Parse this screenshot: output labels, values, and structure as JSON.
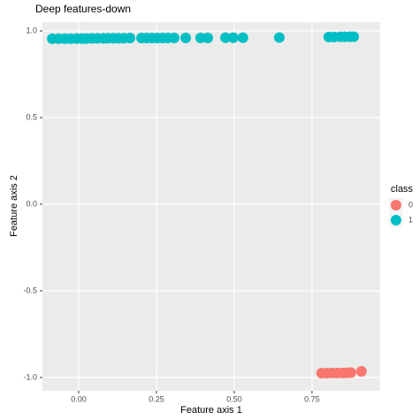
{
  "chart_data": {
    "type": "scatter",
    "title": "Deep features-down",
    "x_label": "Feature axis 1",
    "y_label": "Feature axis 2",
    "legend_title": "class",
    "legend": "right",
    "grid": true,
    "xlim": [
      -0.1165,
      0.969
    ],
    "ylim": [
      -1.077,
      1.051
    ],
    "xticks": [
      {
        "value": 0,
        "label": "0.00"
      },
      {
        "value": 0.25,
        "label": "0.25"
      },
      {
        "value": 0.5,
        "label": "0.50"
      },
      {
        "value": 0.75,
        "label": "0.75"
      }
    ],
    "yticks": [
      {
        "value": -1,
        "label": "-1.0"
      },
      {
        "value": -0.5,
        "label": "-0.5"
      },
      {
        "value": 0,
        "label": "0.0"
      },
      {
        "value": 0.5,
        "label": "0.5"
      },
      {
        "value": 1,
        "label": "1.0"
      }
    ],
    "series": [
      {
        "name": "0",
        "color": "#F8766D",
        "x": [
          0.781,
          0.798,
          0.815,
          0.83,
          0.847,
          0.861,
          0.875,
          0.909
        ],
        "values": [
          -0.975,
          -0.975,
          -0.974,
          -0.974,
          -0.974,
          -0.973,
          -0.972,
          -0.965
        ]
      },
      {
        "name": "1",
        "color": "#00BFC4",
        "x": [
          -0.085,
          -0.065,
          -0.045,
          -0.026,
          -0.006,
          0.011,
          0.026,
          0.043,
          0.06,
          0.08,
          0.094,
          0.111,
          0.128,
          0.145,
          0.165,
          0.202,
          0.219,
          0.236,
          0.253,
          0.27,
          0.287,
          0.307,
          0.344,
          0.392,
          0.415,
          0.472,
          0.497,
          0.528,
          0.645,
          0.804,
          0.821,
          0.841,
          0.855,
          0.872,
          0.884
        ],
        "values": [
          0.955,
          0.955,
          0.955,
          0.955,
          0.956,
          0.956,
          0.956,
          0.957,
          0.957,
          0.957,
          0.958,
          0.958,
          0.958,
          0.958,
          0.959,
          0.959,
          0.959,
          0.959,
          0.959,
          0.959,
          0.96,
          0.96,
          0.96,
          0.96,
          0.96,
          0.961,
          0.961,
          0.961,
          0.962,
          0.965,
          0.965,
          0.966,
          0.966,
          0.967,
          0.967
        ]
      }
    ]
  }
}
